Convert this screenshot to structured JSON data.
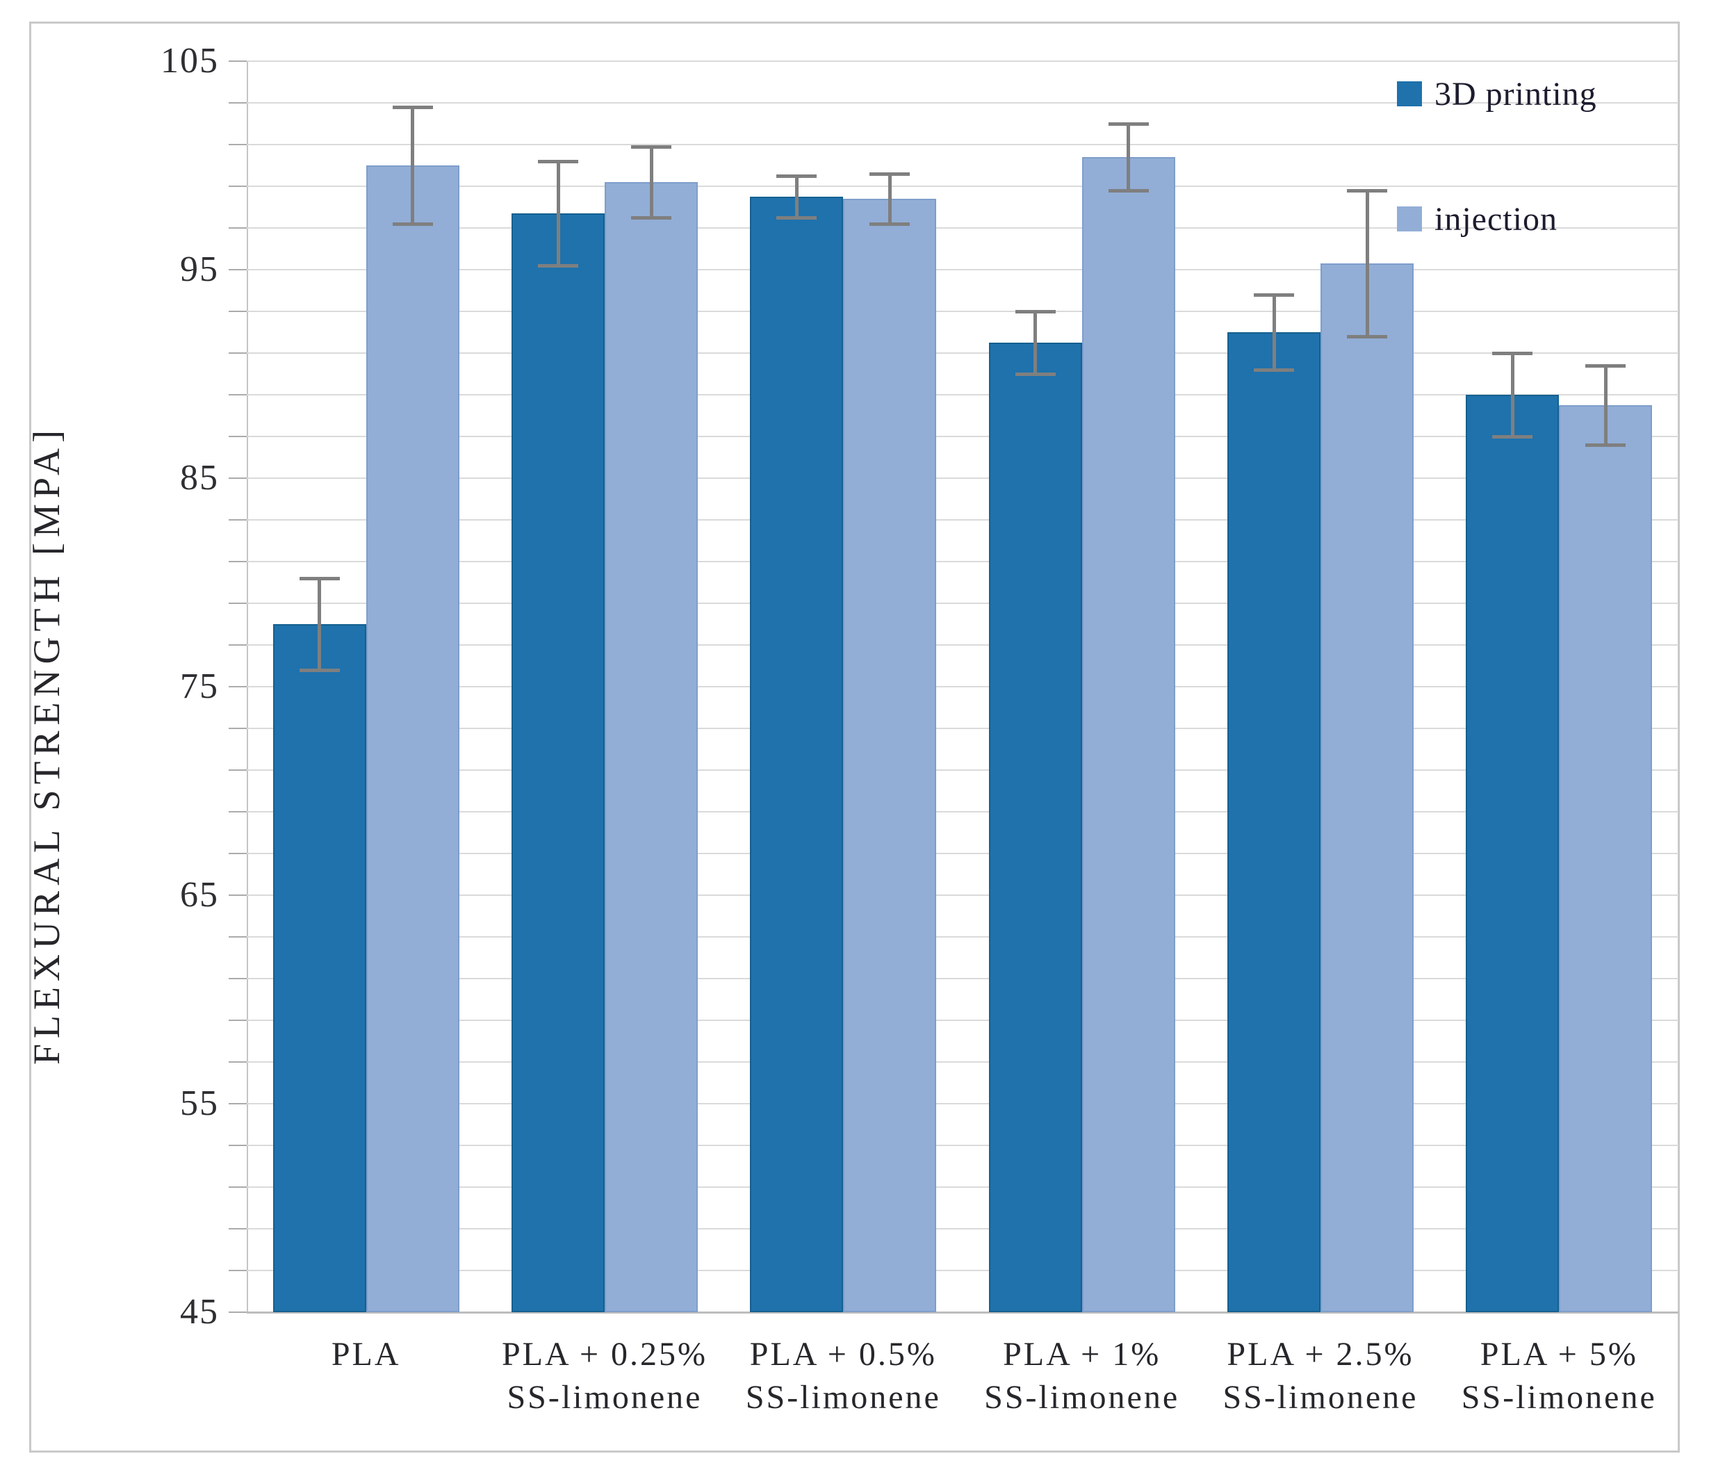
{
  "figure": {
    "background": "#ffffff",
    "border_color": "#c9c9c9"
  },
  "chart_data": {
    "type": "bar",
    "title": "",
    "xlabel": "",
    "ylabel": "FLEXURAL STRENGTH [MPA]",
    "ylim": [
      45,
      105
    ],
    "ytick_step": 10,
    "gridline_step": 2,
    "grid": true,
    "legend_position": "top-right",
    "categories": [
      [
        "PLA"
      ],
      [
        "PLA + 0.25%",
        "SS-limonene"
      ],
      [
        "PLA + 0.5%",
        "SS-limonene"
      ],
      [
        "PLA + 1%",
        "SS-limonene"
      ],
      [
        "PLA + 2.5%",
        "SS-limonene"
      ],
      [
        "PLA + 5%",
        "SS-limonene"
      ]
    ],
    "series": [
      {
        "name": "3D printing",
        "color": "#1f72ac",
        "values": [
          78.0,
          97.7,
          98.5,
          91.5,
          92.0,
          89.0
        ],
        "errors": [
          2.2,
          2.5,
          1.0,
          1.5,
          1.8,
          2.0
        ]
      },
      {
        "name": "injection",
        "color": "#92aed6",
        "values": [
          100.0,
          99.2,
          98.4,
          100.4,
          95.3,
          88.5
        ],
        "errors": [
          2.8,
          1.7,
          1.2,
          1.6,
          3.5,
          1.9
        ]
      }
    ],
    "error_bar_color": "#7f7f7f",
    "gridline_color": "#dadada",
    "axis_text_color": "#2e2e33"
  }
}
